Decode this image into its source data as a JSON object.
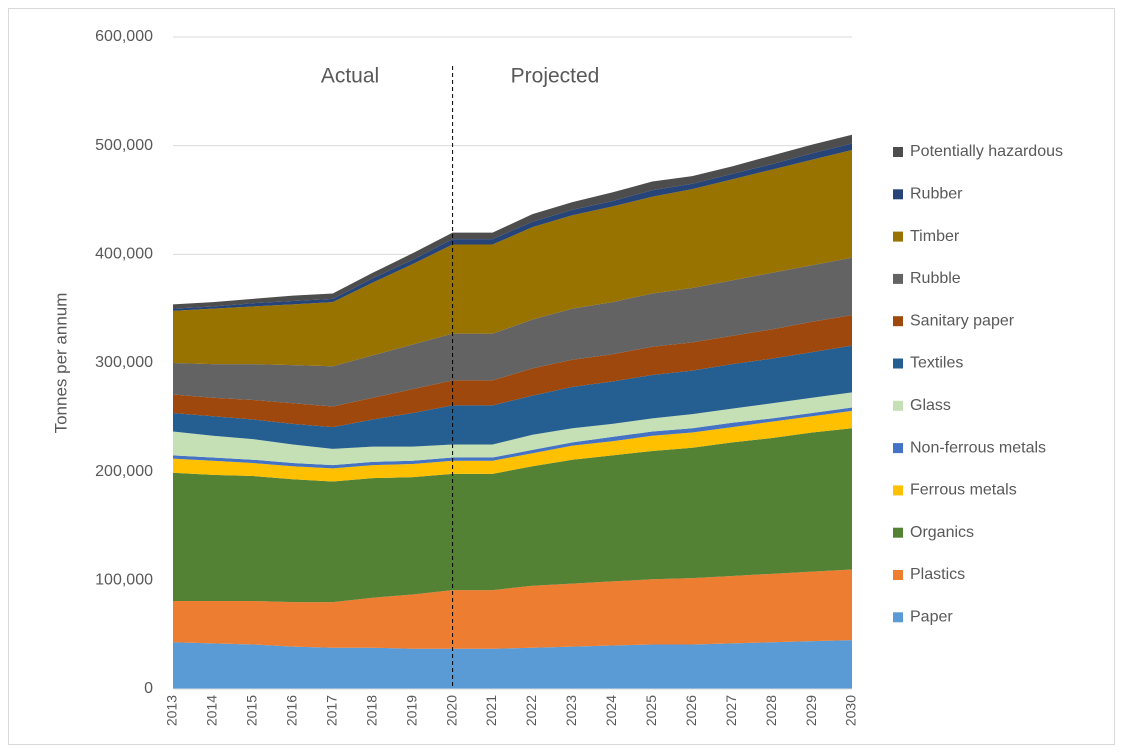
{
  "chart_data": {
    "type": "stacked_area",
    "y_label": "Tonnes per annum",
    "annotations": [
      {
        "text": "Actual"
      },
      {
        "text": "Projected"
      }
    ],
    "divider": 2020,
    "x": [
      2013,
      2014,
      2015,
      2016,
      2017,
      2018,
      2019,
      2020,
      2021,
      2022,
      2023,
      2024,
      2025,
      2026,
      2027,
      2028,
      2029,
      2030
    ],
    "xlim": [
      2013,
      2030
    ],
    "ylim": [
      0,
      600000
    ],
    "yticks": [
      0,
      {
        "value": 100000,
        "label": "100,000"
      },
      {
        "value": 200000,
        "label": "200,000"
      },
      {
        "value": 300000,
        "label": "300,000"
      },
      {
        "value": 400000,
        "label": "400,000"
      },
      {
        "value": 500000,
        "label": "500,000"
      },
      {
        "value": 600000,
        "label": "600,000"
      }
    ],
    "grid": true,
    "legend": "right",
    "series": [
      {
        "name": "Paper",
        "color": "#5b9bd5",
        "values": [
          43000,
          42000,
          41000,
          39000,
          38000,
          38000,
          37000,
          37000,
          37000,
          38000,
          39000,
          40000,
          41000,
          41000,
          42000,
          43000,
          44000,
          45000
        ]
      },
      {
        "name": "Plastics",
        "color": "#ed7d31",
        "values": [
          38000,
          39000,
          40000,
          41000,
          42000,
          46000,
          50000,
          54000,
          54000,
          57000,
          58000,
          59000,
          60000,
          61000,
          62000,
          63000,
          64000,
          65000
        ]
      },
      {
        "name": "Organics",
        "color": "#548235",
        "values": [
          118000,
          116000,
          115000,
          113000,
          111000,
          110000,
          108000,
          107000,
          107000,
          110000,
          114000,
          116000,
          118000,
          120000,
          123000,
          125000,
          128000,
          130000
        ]
      },
      {
        "name": "Ferrous metals",
        "color": "#ffc000",
        "values": [
          13000,
          13000,
          12000,
          12000,
          12000,
          12000,
          12000,
          12000,
          12000,
          12000,
          13000,
          13000,
          14000,
          14000,
          14000,
          15000,
          15000,
          16000
        ]
      },
      {
        "name": "Non-ferrous metals",
        "color": "#4472c4",
        "values": [
          3000,
          3000,
          3000,
          3000,
          3000,
          3000,
          3000,
          3000,
          3000,
          3000,
          3000,
          4000,
          4000,
          4000,
          4000,
          3000,
          3000,
          3000
        ]
      },
      {
        "name": "Glass",
        "color": "#c5e0b4",
        "values": [
          22000,
          20000,
          19000,
          17000,
          15000,
          14000,
          13000,
          12000,
          12000,
          14000,
          13000,
          12000,
          12000,
          13000,
          13000,
          14000,
          14000,
          14000
        ]
      },
      {
        "name": "Textiles",
        "color": "#255e91",
        "values": [
          17000,
          18000,
          18000,
          19000,
          20000,
          25000,
          31000,
          36000,
          36000,
          36000,
          38000,
          39000,
          40000,
          40000,
          41000,
          41000,
          42000,
          43000
        ]
      },
      {
        "name": "Sanitary paper",
        "color": "#9e480e",
        "values": [
          17000,
          17000,
          18000,
          19000,
          19000,
          20000,
          22000,
          23000,
          23000,
          25000,
          25000,
          25000,
          26000,
          26000,
          26000,
          27000,
          28000,
          28000
        ]
      },
      {
        "name": "Rubble",
        "color": "#636363",
        "values": [
          29000,
          31000,
          33000,
          35000,
          37000,
          39000,
          41000,
          43000,
          43000,
          45000,
          47000,
          48000,
          49000,
          50000,
          51000,
          52000,
          52000,
          53000
        ]
      },
      {
        "name": "Timber",
        "color": "#997300",
        "values": [
          48000,
          51000,
          53000,
          56000,
          59000,
          67000,
          74000,
          82000,
          82000,
          85000,
          86000,
          88000,
          89000,
          91000,
          93000,
          95000,
          97000,
          99000
        ]
      },
      {
        "name": "Rubber",
        "color": "#264478",
        "values": [
          2000,
          2000,
          3000,
          3000,
          3000,
          4000,
          4000,
          5000,
          5000,
          5000,
          5000,
          5000,
          6000,
          5000,
          5000,
          5000,
          6000,
          6000
        ]
      },
      {
        "name": "Potentially hazardous",
        "color": "#4d4d4d",
        "values": [
          4000,
          4000,
          4000,
          5000,
          5000,
          5000,
          6000,
          6000,
          6000,
          7000,
          7000,
          8000,
          8000,
          7000,
          7000,
          8000,
          8000,
          8000
        ]
      }
    ]
  }
}
